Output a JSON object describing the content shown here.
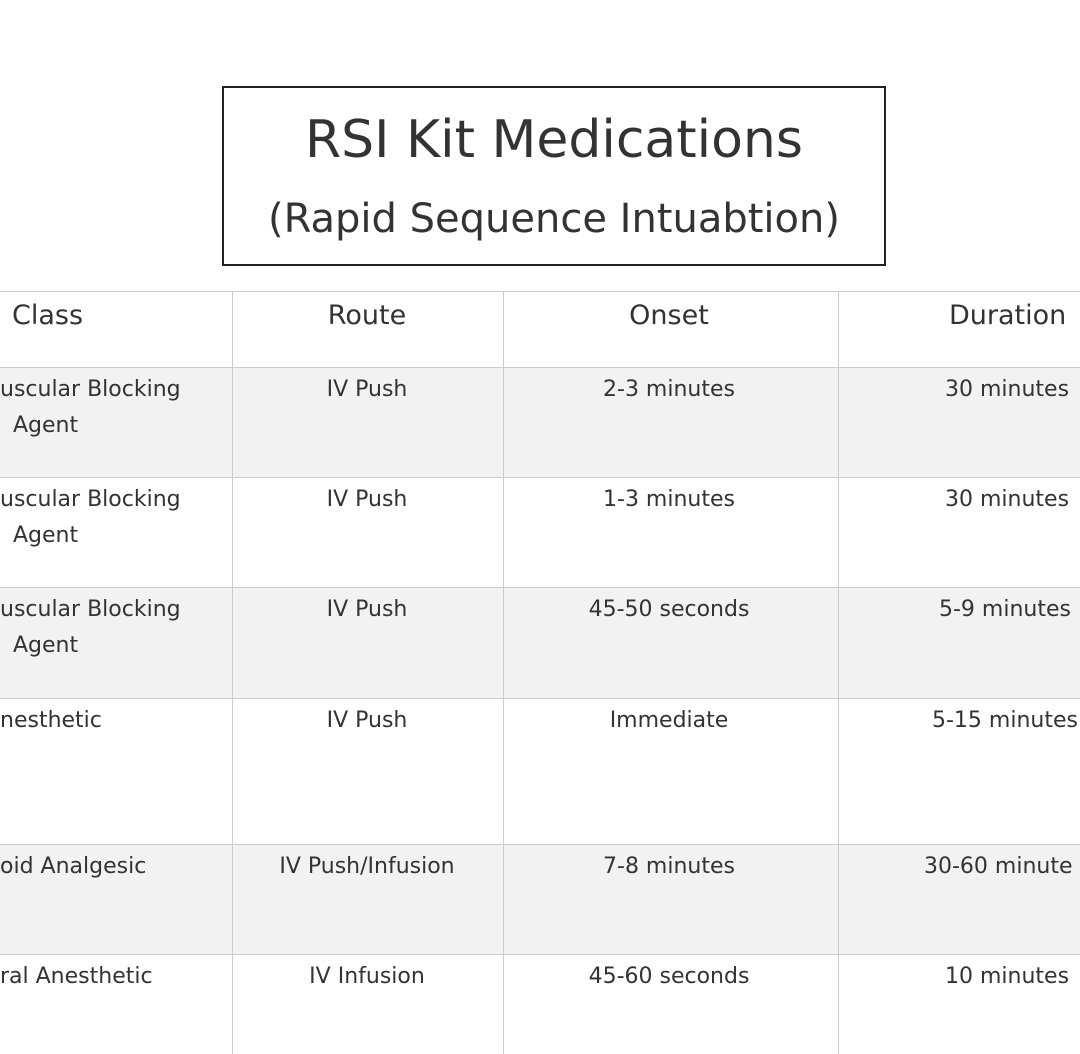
{
  "header": {
    "title": "RSI Kit Medications",
    "subtitle": "(Rapid Sequence Intuabtion)"
  },
  "table": {
    "columns": [
      "Class",
      "Route",
      "Onset",
      "Duration"
    ],
    "rows": [
      [
        [
          "uscular Blocking",
          "Agent"
        ],
        "IV Push",
        "2-3 minutes",
        "30 minutes"
      ],
      [
        [
          "uscular Blocking",
          "Agent"
        ],
        "IV Push",
        "1-3 minutes",
        "30 minutes"
      ],
      [
        [
          "uscular Blocking",
          "Agent"
        ],
        "IV Push",
        "45-50 seconds",
        "5-9 minutes"
      ],
      [
        [
          "nesthetic"
        ],
        "IV Push",
        "Immediate",
        "5-15 minutes"
      ],
      [
        [
          "oid Analgesic"
        ],
        "IV Push/Infusion",
        "7-8 minutes",
        "30-60 minute"
      ],
      [
        [
          "ral Anesthetic"
        ],
        "IV Infusion",
        "45-60 seconds",
        "10 minutes"
      ]
    ]
  }
}
